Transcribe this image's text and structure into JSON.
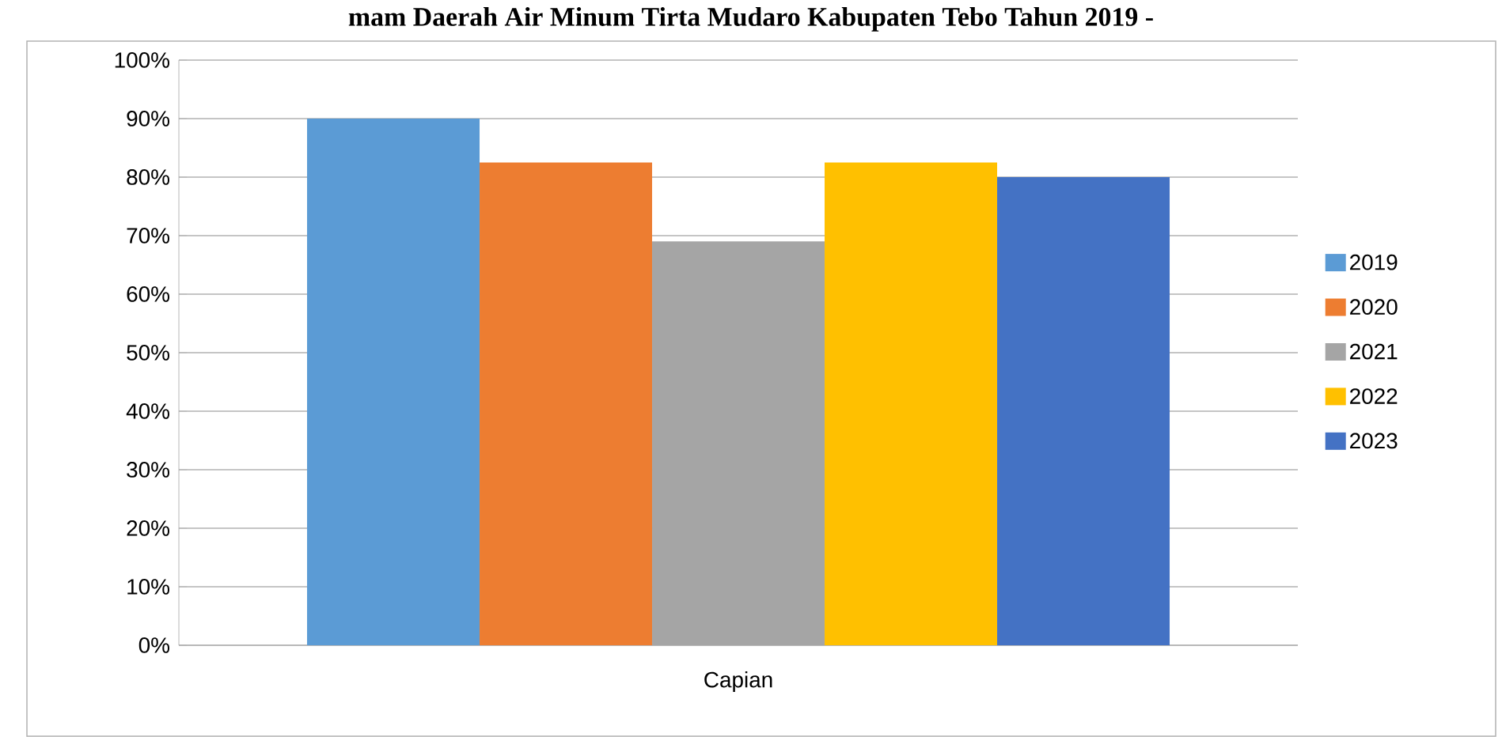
{
  "chart_data": {
    "type": "bar",
    "title": "mam Daerah Air Minum Tirta Mudaro Kabupaten Tebo Tahun 2019 -",
    "categories": [
      "Capian"
    ],
    "series": [
      {
        "name": "2019",
        "color": "#5b9bd5",
        "values": [
          90
        ]
      },
      {
        "name": "2020",
        "color": "#ed7d31",
        "values": [
          82.5
        ]
      },
      {
        "name": "2021",
        "color": "#a5a5a5",
        "values": [
          69
        ]
      },
      {
        "name": "2022",
        "color": "#ffc000",
        "values": [
          82.5
        ]
      },
      {
        "name": "2023",
        "color": "#4472c4",
        "values": [
          80
        ]
      }
    ],
    "ylim": [
      0,
      100
    ],
    "yticks": [
      {
        "value": 0,
        "label": "0%"
      },
      {
        "value": 10,
        "label": "10%"
      },
      {
        "value": 20,
        "label": "20%"
      },
      {
        "value": 30,
        "label": "30%"
      },
      {
        "value": 40,
        "label": "40%"
      },
      {
        "value": 50,
        "label": "50%"
      },
      {
        "value": 60,
        "label": "60%"
      },
      {
        "value": 70,
        "label": "70%"
      },
      {
        "value": 80,
        "label": "80%"
      },
      {
        "value": 90,
        "label": "90%"
      },
      {
        "value": 100,
        "label": "100%"
      }
    ],
    "grid": "y",
    "legend": "right"
  }
}
